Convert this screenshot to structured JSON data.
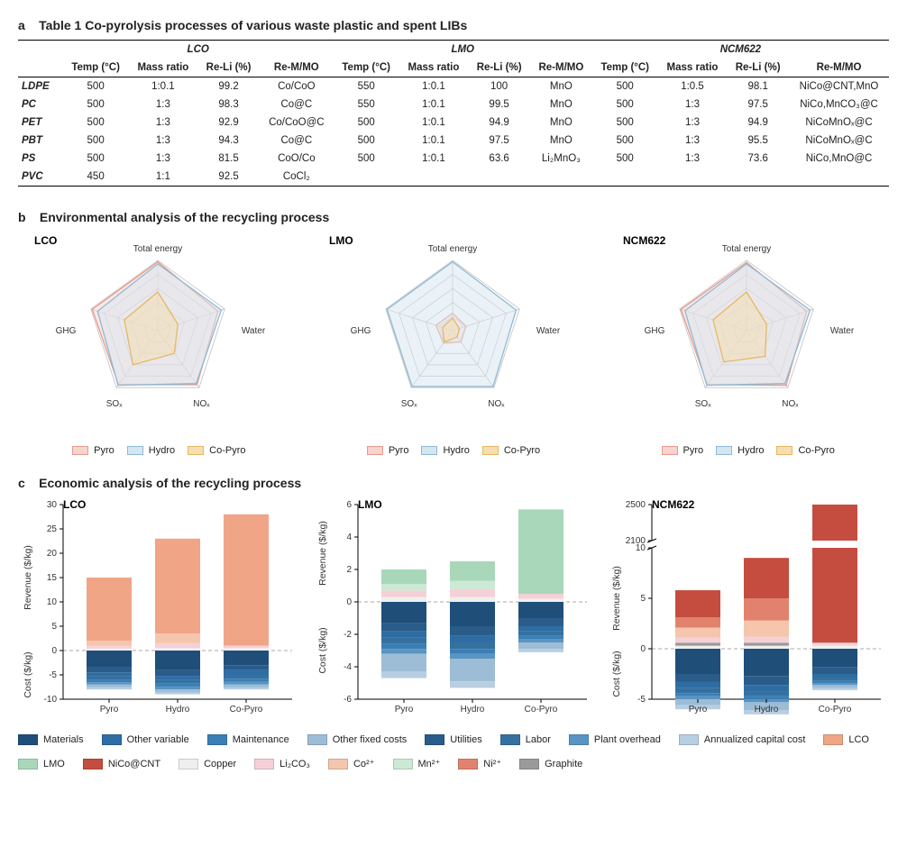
{
  "panel_a": {
    "label": "a",
    "title": "Table 1  Co-pyrolysis processes of various waste plastic and spent LIBs",
    "groups": [
      "LCO",
      "LMO",
      "NCM622"
    ],
    "col_labels": [
      "Temp (°C)",
      "Mass ratio",
      "Re-Li (%)",
      "Re-M/MO"
    ],
    "row_labels": [
      "LDPE",
      "PC",
      "PET",
      "PBT",
      "PS",
      "PVC"
    ],
    "rows": [
      {
        "LCO": [
          "500",
          "1:0.1",
          "99.2",
          "Co/CoO"
        ],
        "LMO": [
          "550",
          "1:0.1",
          "100",
          "MnO"
        ],
        "NCM": [
          "500",
          "1:0.5",
          "98.1",
          "NiCo@CNT,MnO"
        ]
      },
      {
        "LCO": [
          "500",
          "1:3",
          "98.3",
          "Co@C"
        ],
        "LMO": [
          "550",
          "1:0.1",
          "99.5",
          "MnO"
        ],
        "NCM": [
          "500",
          "1:3",
          "97.5",
          "NiCo,MnCO₃@C"
        ]
      },
      {
        "LCO": [
          "500",
          "1:3",
          "92.9",
          "Co/CoO@C"
        ],
        "LMO": [
          "500",
          "1:0.1",
          "94.9",
          "MnO"
        ],
        "NCM": [
          "500",
          "1:3",
          "94.9",
          "NiCoMnOₓ@C"
        ]
      },
      {
        "LCO": [
          "500",
          "1:3",
          "94.3",
          "Co@C"
        ],
        "LMO": [
          "500",
          "1:0.1",
          "97.5",
          "MnO"
        ],
        "NCM": [
          "500",
          "1:3",
          "95.5",
          "NiCoMnOₓ@C"
        ]
      },
      {
        "LCO": [
          "500",
          "1:3",
          "81.5",
          "CoO/Co"
        ],
        "LMO": [
          "500",
          "1:0.1",
          "63.6",
          "Li₂MnO₃"
        ],
        "NCM": [
          "500",
          "1:3",
          "73.6",
          "NiCo,MnO@C"
        ]
      },
      {
        "LCO": [
          "450",
          "1:1",
          "92.5",
          "CoCl₂"
        ],
        "LMO": [
          "",
          "",
          "",
          ""
        ],
        "NCM": [
          "",
          "",
          "",
          ""
        ]
      }
    ]
  },
  "panel_b": {
    "label": "b",
    "title": "Environmental analysis of the recycling process",
    "axes": [
      "Total energy",
      "Water",
      "NOₓ",
      "SOₓ",
      "GHG"
    ],
    "series": [
      {
        "name": "Pyro",
        "fill": "#f7d4ce",
        "stroke": "#e69a8d"
      },
      {
        "name": "Hydro",
        "fill": "#d5e6f0",
        "stroke": "#8fb9d6"
      },
      {
        "name": "Co-Pyro",
        "fill": "#f6deb0",
        "stroke": "#e5b863"
      }
    ],
    "grid_color": "#b8b8b8",
    "charts": [
      {
        "title": "LCO",
        "Pyro": [
          0.98,
          0.9,
          0.95,
          0.95,
          0.98
        ],
        "Hydro": [
          0.95,
          0.95,
          0.93,
          0.96,
          0.9
        ],
        "Co": [
          0.55,
          0.3,
          0.4,
          0.6,
          0.5
        ]
      },
      {
        "title": "LMO",
        "Pyro": [
          0.25,
          0.2,
          0.2,
          0.22,
          0.25
        ],
        "Hydro": [
          0.98,
          0.95,
          0.98,
          0.98,
          0.98
        ],
        "Co": [
          0.18,
          0.1,
          0.11,
          0.2,
          0.15
        ]
      },
      {
        "title": "NCM622",
        "Pyro": [
          0.97,
          0.9,
          0.96,
          0.95,
          0.98
        ],
        "Hydro": [
          0.95,
          0.95,
          0.93,
          0.96,
          0.92
        ],
        "Co": [
          0.55,
          0.3,
          0.45,
          0.55,
          0.5
        ]
      }
    ]
  },
  "panel_c": {
    "label": "c",
    "title": "Economic analysis of the recycling process",
    "x_categories": [
      "Pyro",
      "Hydro",
      "Co-Pyro"
    ],
    "y_up_title": "Revenue ($/kg)",
    "y_down_title": "Cost ($/kg)",
    "grid_dash": "#aaaaaa",
    "cost_colors": {
      "Materials": "#1f4e79",
      "Other variable": "#2e6da4",
      "Maintenance": "#3a7fb5",
      "Other fixed costs": "#9dbdd6",
      "Utilities": "#2a5c8a",
      "Labor": "#3571a0",
      "Plant overhead": "#5a94c2",
      "Annualized capital cost": "#b8cee2"
    },
    "rev_colors": {
      "LCO": "#f0a587",
      "LMO": "#a8d8b9",
      "NiCo@CNT": "#c44d3f",
      "Copper": "#efefef",
      "Li2CO3": "#f5d0d6",
      "Co2+": "#f5c6ab",
      "Mn2+": "#cce9d6",
      "Ni2+": "#e2826e",
      "Graphite": "#9a9a9a"
    },
    "legend_cost": [
      "Materials",
      "Other variable",
      "Maintenance",
      "Other fixed costs",
      "Utilities",
      "Labor",
      "Plant overhead",
      "Annualized capital cost"
    ],
    "legend_rev_labels": {
      "LCO": "LCO",
      "LMO": "LMO",
      "NiCo@CNT": "NiCo@CNT",
      "Copper": "Copper",
      "Li2CO3": "Li₂CO₃",
      "Co2+": "Co²⁺",
      "Mn2+": "Mn²⁺",
      "Ni2+": "Ni²⁺",
      "Graphite": "Graphite"
    },
    "legend_rev_order": [
      "LCO",
      "LMO",
      "NiCo@CNT",
      "Copper",
      "Li2CO3",
      "Co2+",
      "Mn2+",
      "Ni2+",
      "Graphite"
    ],
    "charts": [
      {
        "title": "LCO",
        "ylim_up": 30,
        "ylim_down": -10,
        "yticks": [
          -10,
          -5,
          0,
          5,
          10,
          15,
          20,
          25,
          30
        ],
        "break": false,
        "bars": [
          {
            "cost": {
              "Materials": 3.5,
              "Utilities": 1.0,
              "Other variable": 0.8,
              "Labor": 0.7,
              "Maintenance": 0.5,
              "Plant overhead": 0.5,
              "Other fixed costs": 0.5,
              "Annualized capital cost": 0.5
            },
            "rev": {
              "Copper": 0.4,
              "Li2CO3": 0.6,
              "Co2+": 1.0,
              "LCO": 13.0
            }
          },
          {
            "cost": {
              "Materials": 4.0,
              "Utilities": 1.2,
              "Other variable": 0.8,
              "Labor": 0.8,
              "Maintenance": 0.6,
              "Plant overhead": 0.6,
              "Other fixed costs": 0.6,
              "Annualized capital cost": 0.4
            },
            "rev": {
              "Copper": 0.5,
              "Li2CO3": 1.0,
              "Co2+": 2.0,
              "LCO": 19.5
            }
          },
          {
            "cost": {
              "Materials": 3.0,
              "Utilities": 1.0,
              "Other variable": 1.0,
              "Labor": 0.8,
              "Maintenance": 0.6,
              "Plant overhead": 0.6,
              "Other fixed costs": 0.6,
              "Annualized capital cost": 0.4
            },
            "rev": {
              "Copper": 0.5,
              "Li2CO3": 0.5,
              "LCO": 27.0
            }
          }
        ]
      },
      {
        "title": "LMO",
        "ylim_up": 6,
        "ylim_down": -6,
        "yticks": [
          -6,
          -4,
          -2,
          0,
          2,
          4,
          6
        ],
        "break": false,
        "bars": [
          {
            "cost": {
              "Materials": 1.3,
              "Utilities": 0.5,
              "Other variable": 0.4,
              "Labor": 0.4,
              "Maintenance": 0.3,
              "Plant overhead": 0.3,
              "Other fixed costs": 1.1,
              "Annualized capital cost": 0.4
            },
            "rev": {
              "Copper": 0.3,
              "Li2CO3": 0.4,
              "Mn2+": 0.4,
              "LMO": 0.9
            }
          },
          {
            "cost": {
              "Materials": 1.5,
              "Utilities": 0.6,
              "Other variable": 0.4,
              "Labor": 0.4,
              "Maintenance": 0.3,
              "Plant overhead": 0.3,
              "Other fixed costs": 1.4,
              "Annualized capital cost": 0.4
            },
            "rev": {
              "Copper": 0.3,
              "Li2CO3": 0.5,
              "Mn2+": 0.5,
              "LMO": 1.2
            }
          },
          {
            "cost": {
              "Materials": 1.0,
              "Utilities": 0.5,
              "Other variable": 0.3,
              "Labor": 0.3,
              "Maintenance": 0.2,
              "Plant overhead": 0.2,
              "Other fixed costs": 0.4,
              "Annualized capital cost": 0.2
            },
            "rev": {
              "Copper": 0.2,
              "Li2CO3": 0.3,
              "LMO": 5.2
            }
          }
        ]
      },
      {
        "title": "NCM622",
        "ylim_up": 10,
        "ylim_down": -5,
        "yticks": [
          -5,
          0,
          5,
          10
        ],
        "break": true,
        "break_ticks": [
          2100,
          2500
        ],
        "bars": [
          {
            "cost": {
              "Materials": 2.5,
              "Utilities": 0.8,
              "Other variable": 0.6,
              "Labor": 0.5,
              "Maintenance": 0.3,
              "Plant overhead": 0.3,
              "Other fixed costs": 0.6,
              "Annualized capital cost": 0.4
            },
            "rev": {
              "Copper": 0.3,
              "Graphite": 0.3,
              "Li2CO3": 0.5,
              "Co2+": 1.0,
              "Ni2+": 1.0,
              "NiCo@CNT": 2.7
            }
          },
          {
            "cost": {
              "Materials": 2.7,
              "Utilities": 0.9,
              "Other variable": 0.6,
              "Labor": 0.5,
              "Maintenance": 0.3,
              "Plant overhead": 0.3,
              "Other fixed costs": 0.8,
              "Annualized capital cost": 0.4
            },
            "rev": {
              "Copper": 0.3,
              "Graphite": 0.3,
              "Li2CO3": 0.6,
              "Co2+": 1.6,
              "Ni2+": 2.2,
              "NiCo@CNT": 4.0
            }
          },
          {
            "cost": {
              "Materials": 1.8,
              "Utilities": 0.7,
              "Other variable": 0.4,
              "Labor": 0.3,
              "Maintenance": 0.2,
              "Plant overhead": 0.2,
              "Other fixed costs": 0.3,
              "Annualized capital cost": 0.2
            },
            "rev_break": {
              "NiCo@CNT": 2500
            },
            "rev": {
              "Copper": 0.3,
              "Li2CO3": 0.3
            }
          }
        ]
      }
    ]
  }
}
